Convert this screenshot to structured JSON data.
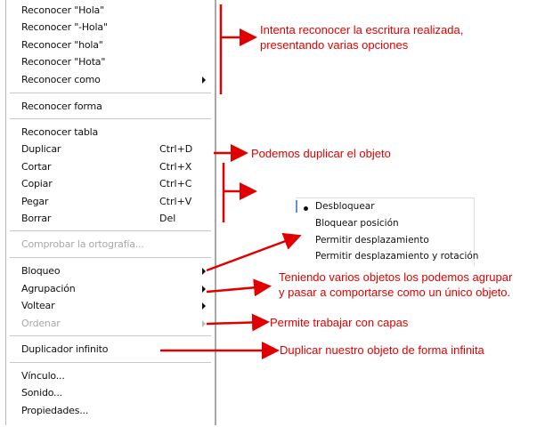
{
  "menu": {
    "items": [
      {
        "label": "Reconocer \"Hola\""
      },
      {
        "label": "Reconocer \"-Hola\""
      },
      {
        "label": "Reconocer \"hola\""
      },
      {
        "label": "Reconocer \"Hota\""
      },
      {
        "label": "Reconocer como",
        "submenu": true
      },
      {
        "label": "Reconocer forma"
      },
      {
        "label": "Reconocer tabla"
      },
      {
        "label": "Duplicar",
        "shortcut": "Ctrl+D"
      },
      {
        "label": "Cortar",
        "shortcut": "Ctrl+X"
      },
      {
        "label": "Copiar",
        "shortcut": "Ctrl+C"
      },
      {
        "label": "Pegar",
        "shortcut": "Ctrl+V"
      },
      {
        "label": "Borrar",
        "shortcut": "Del"
      },
      {
        "label": "Comprobar la ortografía...",
        "disabled": true
      },
      {
        "label": "Bloqueo",
        "submenu": true
      },
      {
        "label": "Agrupación",
        "submenu": true
      },
      {
        "label": "Voltear",
        "submenu": true
      },
      {
        "label": "Ordenar",
        "submenu": true,
        "disabled": true
      },
      {
        "label": "Duplicador infinito"
      },
      {
        "label": "Vínculo..."
      },
      {
        "label": "Sonido..."
      },
      {
        "label": "Propiedades..."
      }
    ]
  },
  "submenu": {
    "items": [
      "Desbloquear",
      "Bloquear posición",
      "Permitir desplazamiento",
      "Permitir desplazamiento y rotación"
    ],
    "selected": "Desbloquear"
  },
  "notes": {
    "recognize_1": "Intenta reconocer la escritura realizada,",
    "recognize_2": "presentando varias opciones",
    "duplicate": "Podemos duplicar el objeto",
    "group_1": "Teniendo varios objetos los podemos agrupar",
    "group_2": "y pasar a comportarse como un único objeto.",
    "layers": "Permite trabajar con capas",
    "infinite": "Duplicar nuestro objeto de forma infinita"
  },
  "colors": {
    "annotation": "#e00000",
    "submenu_accent": "#6a8fd0"
  }
}
